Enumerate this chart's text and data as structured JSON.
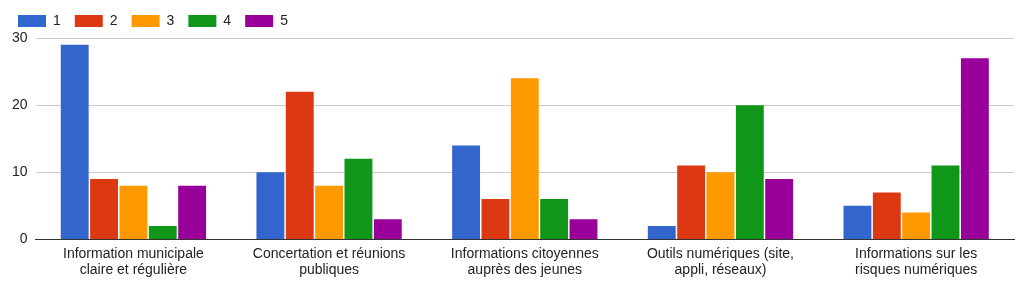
{
  "chart_data": {
    "type": "bar",
    "categories": [
      "Information municipale claire et régulière",
      "Concertation et réunions publiques",
      "Informations citoyennes auprès des jeunes",
      "Outils numériques (site, appli, réseaux)",
      "Informations sur les risques numériques"
    ],
    "series": [
      {
        "name": "1",
        "color": "#3366cc",
        "values": [
          29,
          10,
          14,
          2,
          5
        ]
      },
      {
        "name": "2",
        "color": "#dc3912",
        "values": [
          9,
          22,
          6,
          11,
          7
        ]
      },
      {
        "name": "3",
        "color": "#ff9900",
        "values": [
          8,
          8,
          24,
          10,
          4
        ]
      },
      {
        "name": "4",
        "color": "#109618",
        "values": [
          2,
          12,
          6,
          20,
          11
        ]
      },
      {
        "name": "5",
        "color": "#990099",
        "values": [
          8,
          3,
          3,
          9,
          27
        ]
      }
    ],
    "ylim": [
      0,
      30
    ],
    "yticks": [
      0,
      10,
      20,
      30
    ],
    "grid": "y",
    "legend": "top left"
  }
}
